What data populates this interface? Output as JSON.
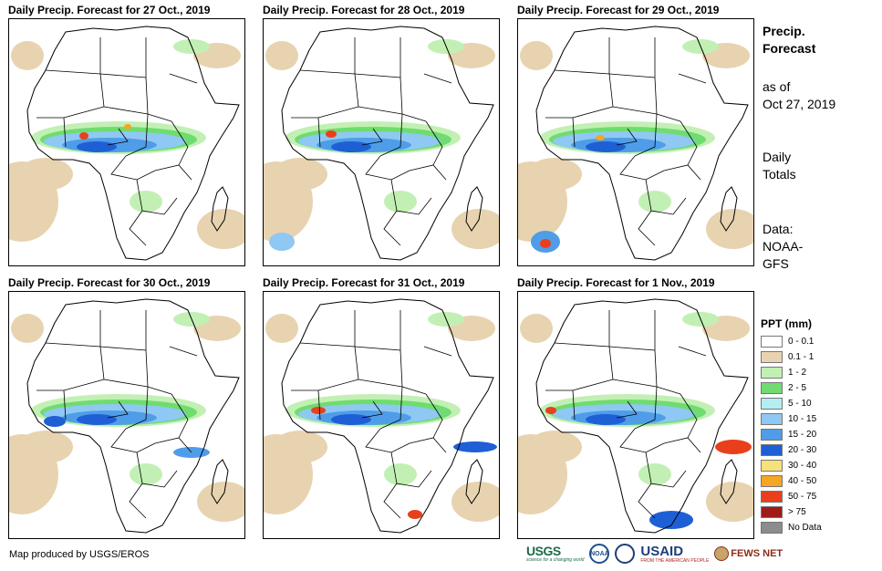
{
  "panels": [
    {
      "title": "Daily Precip. Forecast for 27 Oct., 2019"
    },
    {
      "title": "Daily Precip. Forecast for 28 Oct., 2019"
    },
    {
      "title": "Daily Precip. Forecast for 29 Oct., 2019"
    },
    {
      "title": "Daily Precip. Forecast for 30 Oct., 2019"
    },
    {
      "title": "Daily Precip. Forecast for 31 Oct., 2019"
    },
    {
      "title": "Daily Precip. Forecast for 1 Nov., 2019"
    }
  ],
  "side": {
    "title_line1": "Precip.",
    "title_line2": "Forecast",
    "asof_line1": "as of",
    "asof_line2": "Oct 27, 2019",
    "totals_line1": "Daily",
    "totals_line2": "Totals",
    "data_line1": "Data:",
    "data_line2": "NOAA-",
    "data_line3": "GFS"
  },
  "legend": {
    "title": "PPT (mm)",
    "items": [
      {
        "label": "0 - 0.1",
        "color": "#ffffff"
      },
      {
        "label": "0.1 - 1",
        "color": "#e8d3b0"
      },
      {
        "label": "1 - 2",
        "color": "#c2f0b4"
      },
      {
        "label": "2 - 5",
        "color": "#6fdc6f"
      },
      {
        "label": "5 - 10",
        "color": "#b4eef0"
      },
      {
        "label": "10 - 15",
        "color": "#8fc8f2"
      },
      {
        "label": "15 - 20",
        "color": "#4f9de8"
      },
      {
        "label": "20 - 30",
        "color": "#1f5fd6"
      },
      {
        "label": "30 - 40",
        "color": "#f5e27a"
      },
      {
        "label": "40 - 50",
        "color": "#f5a623"
      },
      {
        "label": "50 - 75",
        "color": "#e8401c"
      },
      {
        "label": "> 75",
        "color": "#a01a1a"
      },
      {
        "label": "No Data",
        "color": "#8c8c8c"
      }
    ]
  },
  "credit": "Map produced by USGS/EROS",
  "logos": {
    "usgs": "USGS",
    "usgs_tagline": "science for a changing world",
    "noaa": "NOAA",
    "usaid": "USAID",
    "usaid_tagline": "FROM THE AMERICAN PEOPLE",
    "fews": "FEWS NET"
  }
}
